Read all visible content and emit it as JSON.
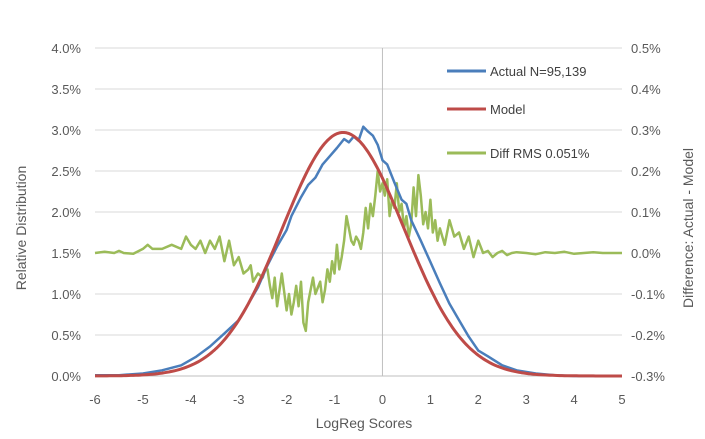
{
  "chart_data": {
    "type": "line",
    "title": "",
    "xlabel": "LogReg Scores",
    "ylabel": "Relative Distribution",
    "y2label": "Difference: Actual - Model",
    "xlim": [
      -6,
      5
    ],
    "ylim": [
      0,
      0.04
    ],
    "y2lim": [
      -0.003,
      0.005
    ],
    "x_ticks": [
      "-6",
      "-5",
      "-4",
      "-3",
      "-2",
      "-1",
      "0",
      "1",
      "2",
      "3",
      "4",
      "5"
    ],
    "y_ticks": [
      "0.0%",
      "0.5%",
      "1.0%",
      "1.5%",
      "2.0%",
      "2.5%",
      "3.0%",
      "3.5%",
      "4.0%"
    ],
    "y2_ticks": [
      "-0.3%",
      "-0.2%",
      "-0.1%",
      "0.0%",
      "0.1%",
      "0.2%",
      "0.3%",
      "0.4%",
      "0.5%"
    ],
    "grid": "horizontal",
    "legend_position": "top-right",
    "series": [
      {
        "name": "Actual N=95,139",
        "color": "#4a7ebb",
        "axis": "left",
        "x": [
          -6,
          -5.5,
          -5,
          -4.6,
          -4.2,
          -3.9,
          -3.6,
          -3.3,
          -3.0,
          -2.8,
          -2.6,
          -2.4,
          -2.2,
          -2.0,
          -1.9,
          -1.7,
          -1.55,
          -1.4,
          -1.25,
          -1.1,
          -0.95,
          -0.8,
          -0.7,
          -0.6,
          -0.5,
          -0.4,
          -0.3,
          -0.2,
          -0.1,
          0.0,
          0.1,
          0.25,
          0.4,
          0.5,
          0.6,
          0.8,
          1.0,
          1.2,
          1.4,
          1.6,
          1.8,
          2.0,
          2.2,
          2.5,
          2.8,
          3.2,
          3.6,
          4.0,
          4.5,
          5.0
        ],
        "values": [
          0.0001,
          0.0001,
          0.0003,
          0.0007,
          0.0013,
          0.0023,
          0.0036,
          0.0052,
          0.0068,
          0.0088,
          0.0108,
          0.0135,
          0.0158,
          0.0178,
          0.0195,
          0.0218,
          0.0233,
          0.0242,
          0.0258,
          0.0268,
          0.0278,
          0.0289,
          0.0285,
          0.0292,
          0.0287,
          0.0304,
          0.0298,
          0.0293,
          0.0282,
          0.0263,
          0.0258,
          0.0236,
          0.0215,
          0.021,
          0.019,
          0.0165,
          0.0139,
          0.0113,
          0.0088,
          0.0068,
          0.0048,
          0.0031,
          0.0024,
          0.0013,
          0.0007,
          0.0003,
          0.0001,
          0.0,
          0.0,
          0.0
        ]
      },
      {
        "name": "Model",
        "color": "#be4b48",
        "axis": "left",
        "curve": {
          "peak": 0.0297,
          "center": -0.82,
          "sigma": 1.27
        }
      },
      {
        "name": "Diff RMS 0.051%",
        "color": "#9bbb59",
        "axis": "right",
        "x": [
          -6,
          -5.8,
          -5.6,
          -5.5,
          -5.4,
          -5.2,
          -5.0,
          -4.9,
          -4.8,
          -4.6,
          -4.4,
          -4.2,
          -4.1,
          -4.0,
          -3.9,
          -3.8,
          -3.7,
          -3.6,
          -3.5,
          -3.4,
          -3.3,
          -3.2,
          -3.1,
          -3.0,
          -2.9,
          -2.8,
          -2.75,
          -2.7,
          -2.6,
          -2.5,
          -2.45,
          -2.4,
          -2.35,
          -2.3,
          -2.25,
          -2.2,
          -2.15,
          -2.1,
          -2.0,
          -1.95,
          -1.9,
          -1.85,
          -1.8,
          -1.75,
          -1.7,
          -1.65,
          -1.6,
          -1.55,
          -1.5,
          -1.45,
          -1.4,
          -1.3,
          -1.25,
          -1.2,
          -1.15,
          -1.1,
          -1.05,
          -1.0,
          -0.95,
          -0.9,
          -0.85,
          -0.8,
          -0.75,
          -0.7,
          -0.65,
          -0.6,
          -0.55,
          -0.5,
          -0.45,
          -0.4,
          -0.35,
          -0.3,
          -0.25,
          -0.2,
          -0.15,
          -0.1,
          -0.05,
          0.0,
          0.05,
          0.1,
          0.15,
          0.2,
          0.25,
          0.3,
          0.35,
          0.4,
          0.45,
          0.5,
          0.55,
          0.6,
          0.65,
          0.7,
          0.75,
          0.8,
          0.85,
          0.9,
          0.95,
          1.0,
          1.05,
          1.1,
          1.15,
          1.2,
          1.3,
          1.4,
          1.5,
          1.6,
          1.7,
          1.8,
          1.9,
          2.0,
          2.1,
          2.2,
          2.3,
          2.4,
          2.5,
          2.6,
          2.7,
          2.8,
          3.0,
          3.2,
          3.4,
          3.6,
          3.8,
          4.0,
          4.2,
          4.4,
          4.6,
          4.8,
          5.0
        ],
        "values": [
          0.0,
          3e-05,
          0.0,
          5e-05,
          0.0,
          -2e-05,
          0.0001,
          0.0002,
          0.0001,
          0.0001,
          0.0002,
          0.0001,
          0.0004,
          0.0002,
          0.0001,
          0.0003,
          0.0,
          0.0003,
          0.0001,
          0.0004,
          -0.0002,
          0.0003,
          -0.0003,
          -0.0001,
          -0.0005,
          -0.0004,
          -0.0003,
          -0.0007,
          -0.0005,
          -0.0006,
          -0.0004,
          -0.0004,
          -0.0008,
          -0.0011,
          -0.0006,
          -0.0013,
          -0.0009,
          -0.0005,
          -0.0014,
          -0.001,
          -0.0015,
          -0.0012,
          -0.0008,
          -0.0013,
          -0.0007,
          -0.0017,
          -0.0019,
          -0.0012,
          -0.0009,
          -0.0006,
          -0.001,
          -0.0007,
          -0.0012,
          -0.0009,
          -0.0004,
          -0.0007,
          -0.0002,
          -0.0005,
          0.0002,
          -0.0004,
          -0.0001,
          0.0003,
          0.0009,
          0.0006,
          0.0003,
          0.0002,
          0.0004,
          0.0003,
          0.0001,
          0.0005,
          0.0011,
          0.0006,
          0.0012,
          0.0009,
          0.0014,
          0.002,
          0.0015,
          0.0017,
          0.0014,
          0.0018,
          0.0009,
          0.0013,
          0.0011,
          0.0017,
          0.001,
          0.0012,
          0.0006,
          0.0009,
          0.0004,
          0.0007,
          0.0016,
          0.0009,
          0.0019,
          0.0014,
          0.0007,
          0.001,
          0.0006,
          0.0013,
          0.0005,
          0.0008,
          0.0003,
          0.0006,
          0.0002,
          0.0008,
          0.0004,
          0.0005,
          0.0001,
          0.0004,
          -0.0001,
          0.0003,
          0.0,
          5e-05,
          -0.0001,
          0.0,
          5e-05,
          -5e-05,
          0.0,
          2e-05,
          0.0,
          -3e-05,
          2e-05,
          0.0,
          3e-05,
          -2e-05,
          0.0,
          2e-05,
          0.0,
          0.0,
          0.0
        ]
      }
    ]
  }
}
